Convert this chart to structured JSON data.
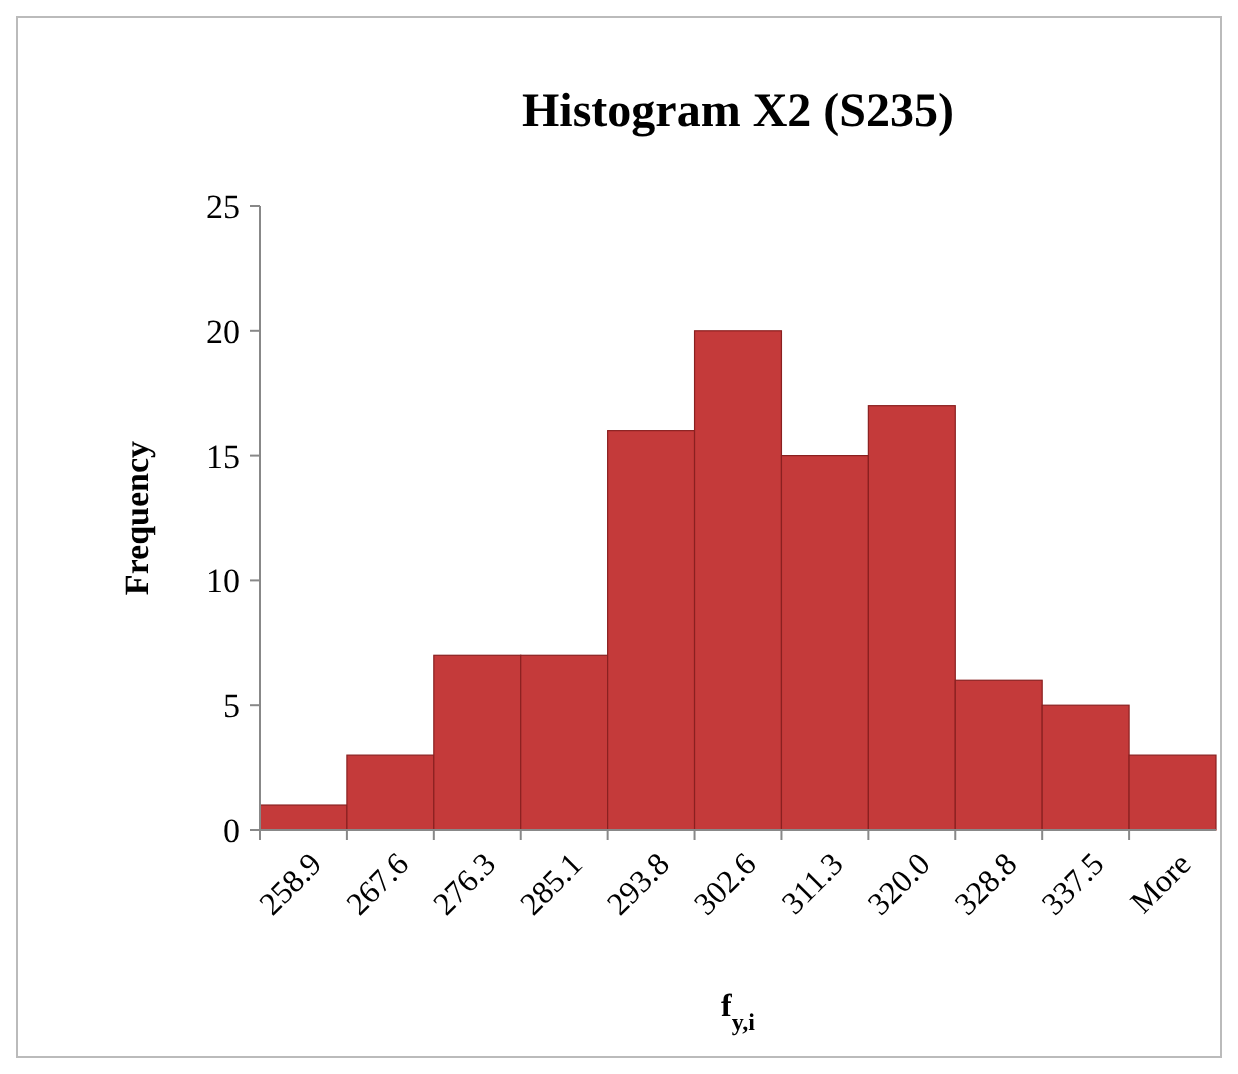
{
  "chart_data": {
    "type": "bar",
    "title": "Histogram X2 (S235)",
    "xlabel": "f$_{y,i}$",
    "ylabel": "Frequency",
    "categories": [
      "258.9",
      "267.6",
      "276.3",
      "285.1",
      "293.8",
      "302.6",
      "311.3",
      "320.0",
      "328.8",
      "337.5",
      "More"
    ],
    "values": [
      1,
      3,
      7,
      7,
      16,
      20,
      15,
      17,
      6,
      5,
      3
    ],
    "color": "#c43a3a",
    "ylim": [
      0,
      25
    ],
    "yticks": [
      0,
      5,
      10,
      15,
      20,
      25
    ],
    "grid": false
  }
}
